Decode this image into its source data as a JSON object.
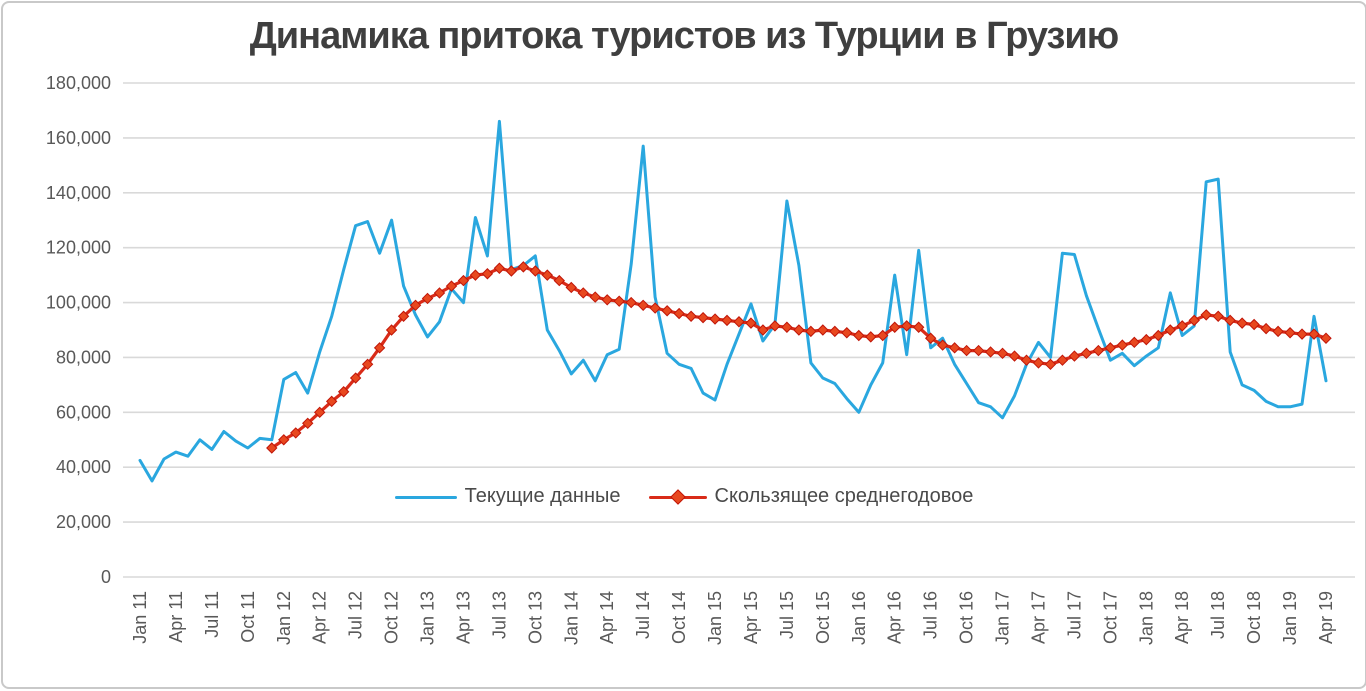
{
  "window": {
    "background": "#ffffff",
    "border_color": "#c9c9c9"
  },
  "chart_data": {
    "type": "line",
    "title": "Динамика притока туристов из Турции в Грузию",
    "title_color": "#3f3f3f",
    "xlabel": "",
    "ylabel": "",
    "ylim": [
      0,
      180000
    ],
    "ytick_step": 20000,
    "ytick_labels": [
      "0",
      "20,000",
      "40,000",
      "60,000",
      "80,000",
      "100,000",
      "120,000",
      "140,000",
      "160,000",
      "180,000"
    ],
    "grid": "horizontal",
    "gridline_color": "#d9d9d9",
    "axis_text_color": "#595959",
    "legend_position": "bottom-inside",
    "x_tick_every": 3,
    "categories": [
      "Jan 11",
      "Feb 11",
      "Mar 11",
      "Apr 11",
      "May 11",
      "Jun 11",
      "Jul 11",
      "Aug 11",
      "Sep 11",
      "Oct 11",
      "Nov 11",
      "Dec 11",
      "Jan 12",
      "Feb 12",
      "Mar 12",
      "Apr 12",
      "May 12",
      "Jun 12",
      "Jul 12",
      "Aug 12",
      "Sep 12",
      "Oct 12",
      "Nov 12",
      "Dec 12",
      "Jan 13",
      "Feb 13",
      "Mar 13",
      "Apr 13",
      "May 13",
      "Jun 13",
      "Jul 13",
      "Aug 13",
      "Sep 13",
      "Oct 13",
      "Nov 13",
      "Dec 13",
      "Jan 14",
      "Feb 14",
      "Mar 14",
      "Apr 14",
      "May 14",
      "Jun 14",
      "Jul 14",
      "Aug 14",
      "Sep 14",
      "Oct 14",
      "Nov 14",
      "Dec 14",
      "Jan 15",
      "Feb 15",
      "Mar 15",
      "Apr 15",
      "May 15",
      "Jun 15",
      "Jul 15",
      "Aug 15",
      "Sep 15",
      "Oct 15",
      "Nov 15",
      "Dec 15",
      "Jan 16",
      "Feb 16",
      "Mar 16",
      "Apr 16",
      "May 16",
      "Jun 16",
      "Jul 16",
      "Aug 16",
      "Sep 16",
      "Oct 16",
      "Nov 16",
      "Dec 16",
      "Jan 17",
      "Feb 17",
      "Mar 17",
      "Apr 17",
      "May 17",
      "Jun 17",
      "Jul 17",
      "Aug 17",
      "Sep 17",
      "Oct 17",
      "Nov 17",
      "Dec 17",
      "Jan 18",
      "Feb 18",
      "Mar 18",
      "Apr 18",
      "May 18",
      "Jun 18",
      "Jul 18",
      "Aug 18",
      "Sep 18",
      "Oct 18",
      "Nov 18",
      "Dec 18",
      "Jan 19",
      "Feb 19",
      "Mar 19",
      "Apr 19"
    ],
    "series": [
      {
        "name": "Текущие данные",
        "color": "#2aa7df",
        "marker": "none",
        "start_index": 0,
        "values": [
          42500,
          35000,
          43000,
          45500,
          44000,
          50000,
          46500,
          53000,
          49500,
          47000,
          50500,
          50000,
          72000,
          74500,
          67000,
          82000,
          95000,
          112000,
          128000,
          129500,
          118000,
          130000,
          106000,
          95500,
          87500,
          93000,
          105000,
          100000,
          131000,
          117000,
          166000,
          112000,
          113500,
          117000,
          90000,
          82500,
          74000,
          79000,
          71500,
          81000,
          83000,
          114000,
          157000,
          102000,
          81500,
          77500,
          76000,
          67000,
          64500,
          77500,
          88500,
          99500,
          86000,
          92000,
          137000,
          113500,
          78000,
          72500,
          70500,
          65000,
          60000,
          70000,
          78000,
          110000,
          81000,
          119000,
          83500,
          87000,
          77500,
          70500,
          63500,
          62000,
          58000,
          66000,
          77500,
          85500,
          80000,
          118000,
          117500,
          102500,
          90500,
          79000,
          81500,
          77000,
          80500,
          83500,
          103500,
          88000,
          91500,
          144000,
          145000,
          82000,
          70000,
          68000,
          64000,
          62000,
          62000,
          63000,
          95000,
          71500
        ]
      },
      {
        "name": "Скользящее среднегодовое",
        "color": "#d92b18",
        "marker": "diamond",
        "marker_fill": "#e8481f",
        "marker_edge": "#c01508",
        "start_index": 11,
        "values": [
          47000,
          50000,
          52500,
          56000,
          60000,
          64000,
          67500,
          72500,
          77500,
          83500,
          90000,
          95000,
          99000,
          101500,
          103500,
          106000,
          108000,
          110000,
          110500,
          112500,
          111500,
          113000,
          111500,
          110000,
          108000,
          105500,
          103500,
          102000,
          101000,
          100500,
          100000,
          99000,
          98000,
          97000,
          96000,
          95000,
          94500,
          94000,
          93500,
          93000,
          92500,
          90000,
          91500,
          91000,
          90000,
          89500,
          90000,
          89500,
          89000,
          88000,
          87500,
          88000,
          91000,
          91500,
          91000,
          87000,
          84500,
          83500,
          82500,
          82500,
          82000,
          81500,
          80500,
          79000,
          78000,
          77500,
          79000,
          80500,
          81500,
          82500,
          83500,
          84500,
          85500,
          86500,
          88000,
          90000,
          91500,
          93500,
          95500,
          95000,
          93500,
          92500,
          92000,
          90500,
          89500,
          89000,
          88500,
          88500,
          87000
        ]
      }
    ]
  }
}
